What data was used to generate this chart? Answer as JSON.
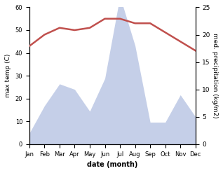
{
  "months": [
    "Jan",
    "Feb",
    "Mar",
    "Apr",
    "May",
    "Jun",
    "Jul",
    "Aug",
    "Sep",
    "Oct",
    "Nov",
    "Dec"
  ],
  "temperature": [
    43,
    48,
    51,
    50,
    51,
    55,
    55,
    53,
    53,
    49,
    45,
    41
  ],
  "precipitation": [
    2,
    7,
    11,
    10,
    6,
    12,
    27,
    18,
    4,
    4,
    9,
    5
  ],
  "temp_color": "#c0504d",
  "precip_fill_color": "#c5cfe8",
  "left_ylim": [
    0,
    60
  ],
  "right_ylim": [
    0,
    25
  ],
  "left_yticks": [
    0,
    10,
    20,
    30,
    40,
    50,
    60
  ],
  "right_yticks": [
    0,
    5,
    10,
    15,
    20,
    25
  ],
  "xlabel": "date (month)",
  "ylabel_left": "max temp (C)",
  "ylabel_right": "med. precipitation (kg/m2)",
  "background_color": "#ffffff",
  "temp_linewidth": 1.8
}
